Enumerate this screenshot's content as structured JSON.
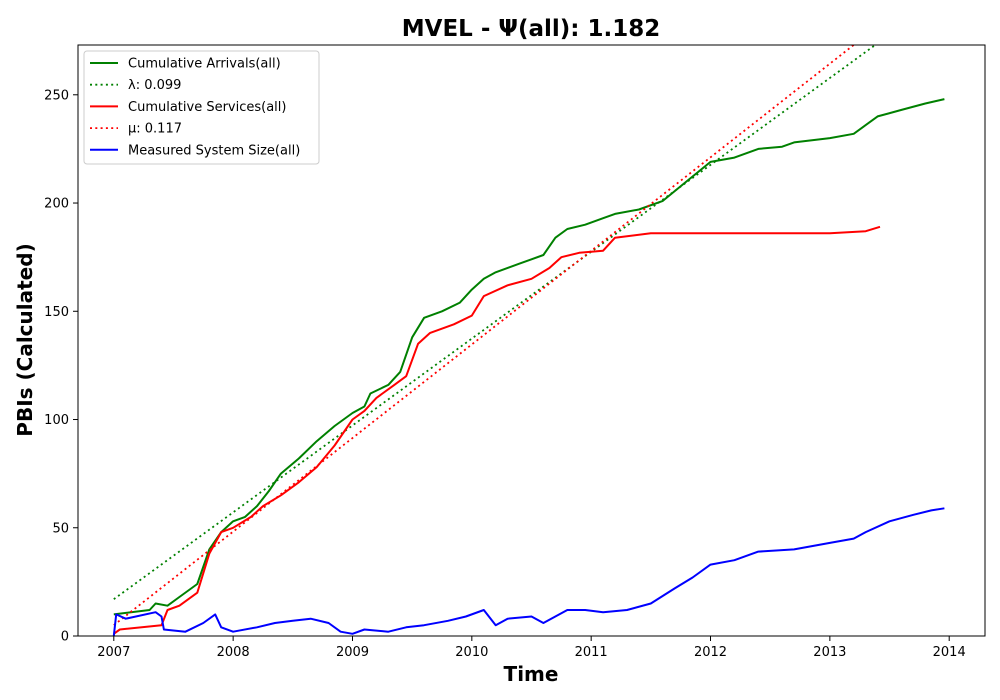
{
  "chart_data": {
    "type": "line",
    "title": "MVEL -  Ψ(all): 1.182",
    "xlabel": "Time",
    "ylabel": "PBIs (Calculated)",
    "xlim": [
      2006.7,
      2014.3
    ],
    "ylim": [
      0,
      273
    ],
    "x_ticks": [
      {
        "value": 2007,
        "label": "2007"
      },
      {
        "value": 2008,
        "label": "2008"
      },
      {
        "value": 2009,
        "label": "2009"
      },
      {
        "value": 2010,
        "label": "2010"
      },
      {
        "value": 2011,
        "label": "2011"
      },
      {
        "value": 2012,
        "label": "2012"
      },
      {
        "value": 2013,
        "label": "2013"
      },
      {
        "value": 2014,
        "label": "2014"
      }
    ],
    "y_ticks": [
      {
        "value": 0,
        "label": "0"
      },
      {
        "value": 50,
        "label": "50"
      },
      {
        "value": 100,
        "label": "100"
      },
      {
        "value": 150,
        "label": "150"
      },
      {
        "value": 200,
        "label": "200"
      },
      {
        "value": 250,
        "label": "250"
      }
    ],
    "grid": false,
    "legend_position": "top-left",
    "series": [
      {
        "key": "arrivals",
        "name": "Cumulative Arrivals(all)",
        "color": "#008000",
        "style": "solid",
        "points": [
          [
            2007.0,
            10
          ],
          [
            2007.3,
            12
          ],
          [
            2007.35,
            15
          ],
          [
            2007.45,
            14
          ],
          [
            2007.55,
            18
          ],
          [
            2007.7,
            24
          ],
          [
            2007.8,
            40
          ],
          [
            2007.9,
            48
          ],
          [
            2008.0,
            53
          ],
          [
            2008.1,
            55
          ],
          [
            2008.2,
            60
          ],
          [
            2008.3,
            67
          ],
          [
            2008.4,
            75
          ],
          [
            2008.55,
            82
          ],
          [
            2008.7,
            90
          ],
          [
            2008.85,
            97
          ],
          [
            2009.0,
            103
          ],
          [
            2009.1,
            106
          ],
          [
            2009.15,
            112
          ],
          [
            2009.3,
            116
          ],
          [
            2009.4,
            122
          ],
          [
            2009.5,
            138
          ],
          [
            2009.6,
            147
          ],
          [
            2009.75,
            150
          ],
          [
            2009.9,
            154
          ],
          [
            2010.0,
            160
          ],
          [
            2010.1,
            165
          ],
          [
            2010.2,
            168
          ],
          [
            2010.4,
            172
          ],
          [
            2010.5,
            174
          ],
          [
            2010.6,
            176
          ],
          [
            2010.7,
            184
          ],
          [
            2010.8,
            188
          ],
          [
            2010.95,
            190
          ],
          [
            2011.1,
            193
          ],
          [
            2011.2,
            195
          ],
          [
            2011.4,
            197
          ],
          [
            2011.6,
            201
          ],
          [
            2011.8,
            210
          ],
          [
            2012.0,
            219
          ],
          [
            2012.2,
            221
          ],
          [
            2012.4,
            225
          ],
          [
            2012.6,
            226
          ],
          [
            2012.7,
            228
          ],
          [
            2013.0,
            230
          ],
          [
            2013.2,
            232
          ],
          [
            2013.3,
            236
          ],
          [
            2013.4,
            240
          ],
          [
            2013.6,
            243
          ],
          [
            2013.8,
            246
          ],
          [
            2013.96,
            248
          ]
        ]
      },
      {
        "key": "lambda",
        "name": "λ: 0.099",
        "color": "#008000",
        "style": "dotted",
        "points": [
          [
            2007.0,
            17
          ],
          [
            2013.38,
            273
          ]
        ]
      },
      {
        "key": "services",
        "name": "Cumulative Services(all)",
        "color": "#ff0000",
        "style": "solid",
        "points": [
          [
            2007.0,
            1
          ],
          [
            2007.05,
            3
          ],
          [
            2007.4,
            5
          ],
          [
            2007.45,
            12
          ],
          [
            2007.55,
            14
          ],
          [
            2007.7,
            20
          ],
          [
            2007.8,
            38
          ],
          [
            2007.9,
            48
          ],
          [
            2008.0,
            50
          ],
          [
            2008.15,
            55
          ],
          [
            2008.25,
            60
          ],
          [
            2008.4,
            65
          ],
          [
            2008.55,
            71
          ],
          [
            2008.7,
            78
          ],
          [
            2008.85,
            88
          ],
          [
            2009.0,
            100
          ],
          [
            2009.1,
            104
          ],
          [
            2009.2,
            110
          ],
          [
            2009.35,
            116
          ],
          [
            2009.45,
            120
          ],
          [
            2009.55,
            135
          ],
          [
            2009.65,
            140
          ],
          [
            2009.85,
            144
          ],
          [
            2010.0,
            148
          ],
          [
            2010.1,
            157
          ],
          [
            2010.3,
            162
          ],
          [
            2010.5,
            165
          ],
          [
            2010.65,
            170
          ],
          [
            2010.75,
            175
          ],
          [
            2010.9,
            177
          ],
          [
            2011.1,
            178
          ],
          [
            2011.2,
            184
          ],
          [
            2011.5,
            186
          ],
          [
            2012.0,
            186
          ],
          [
            2012.5,
            186
          ],
          [
            2013.0,
            186
          ],
          [
            2013.3,
            187
          ],
          [
            2013.42,
            189
          ]
        ]
      },
      {
        "key": "mu",
        "name": "μ: 0.117",
        "color": "#ff0000",
        "style": "dotted",
        "points": [
          [
            2007.0,
            5
          ],
          [
            2013.2,
            273
          ]
        ]
      },
      {
        "key": "system_size",
        "name": "Measured System Size(all)",
        "color": "#0000ff",
        "style": "solid",
        "points": [
          [
            2007.0,
            0
          ],
          [
            2007.02,
            10
          ],
          [
            2007.1,
            8
          ],
          [
            2007.35,
            11
          ],
          [
            2007.4,
            9
          ],
          [
            2007.42,
            3
          ],
          [
            2007.6,
            2
          ],
          [
            2007.75,
            6
          ],
          [
            2007.85,
            10
          ],
          [
            2007.9,
            4
          ],
          [
            2008.0,
            2
          ],
          [
            2008.2,
            4
          ],
          [
            2008.35,
            6
          ],
          [
            2008.5,
            7
          ],
          [
            2008.65,
            8
          ],
          [
            2008.8,
            6
          ],
          [
            2008.9,
            2
          ],
          [
            2009.0,
            1
          ],
          [
            2009.1,
            3
          ],
          [
            2009.3,
            2
          ],
          [
            2009.45,
            4
          ],
          [
            2009.6,
            5
          ],
          [
            2009.8,
            7
          ],
          [
            2009.95,
            9
          ],
          [
            2010.1,
            12
          ],
          [
            2010.2,
            5
          ],
          [
            2010.3,
            8
          ],
          [
            2010.5,
            9
          ],
          [
            2010.6,
            6
          ],
          [
            2010.8,
            12
          ],
          [
            2010.95,
            12
          ],
          [
            2011.1,
            11
          ],
          [
            2011.3,
            12
          ],
          [
            2011.5,
            15
          ],
          [
            2011.7,
            22
          ],
          [
            2011.85,
            27
          ],
          [
            2012.0,
            33
          ],
          [
            2012.2,
            35
          ],
          [
            2012.4,
            39
          ],
          [
            2012.7,
            40
          ],
          [
            2013.0,
            43
          ],
          [
            2013.2,
            45
          ],
          [
            2013.3,
            48
          ],
          [
            2013.5,
            53
          ],
          [
            2013.7,
            56
          ],
          [
            2013.85,
            58
          ],
          [
            2013.96,
            59
          ]
        ]
      }
    ]
  }
}
